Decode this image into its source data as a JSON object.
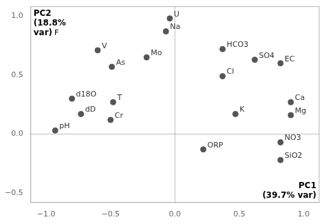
{
  "chart_data": {
    "type": "scatter",
    "labels": [
      "U",
      "Na",
      "Mo",
      "V",
      "As",
      "HCO3",
      "SO4",
      "EC",
      "Cl",
      "Ca",
      "Mg",
      "K",
      "d18O",
      "dD",
      "pH",
      "T",
      "Cr",
      "ORP",
      "NO3",
      "SiO2"
    ],
    "x": [
      -0.04,
      -0.07,
      -0.22,
      -0.6,
      -0.49,
      0.37,
      0.62,
      0.82,
      0.37,
      0.9,
      0.9,
      0.47,
      -0.8,
      -0.73,
      -0.93,
      -0.48,
      -0.5,
      0.22,
      0.82,
      0.82
    ],
    "values": [
      0.98,
      0.87,
      0.65,
      0.71,
      0.57,
      0.72,
      0.63,
      0.6,
      0.49,
      0.27,
      0.16,
      0.17,
      0.3,
      0.17,
      0.03,
      0.27,
      0.12,
      -0.13,
      -0.07,
      -0.22
    ],
    "color": "#555555",
    "xlim": [
      -1.12,
      1.12
    ],
    "ylim": [
      -0.58,
      1.08
    ],
    "xticks": [
      {
        "value": -1,
        "label": "−1.0"
      },
      {
        "value": -0.5,
        "label": "−0.5"
      },
      {
        "value": 0,
        "label": "0.0"
      },
      0.5,
      {
        "value": 1,
        "label": "1.0"
      }
    ],
    "yticks": [
      {
        "value": -0.5,
        "label": "−0.5"
      },
      {
        "value": 0,
        "label": "0.0"
      },
      0.5,
      {
        "value": 1,
        "label": "1.0"
      }
    ],
    "grid": false,
    "annotations": [
      {
        "text": "PC1\n(39.7% var)"
      },
      {
        "text": "PC2\n(18.8%\nvar)"
      },
      {
        "text": "F"
      }
    ]
  }
}
